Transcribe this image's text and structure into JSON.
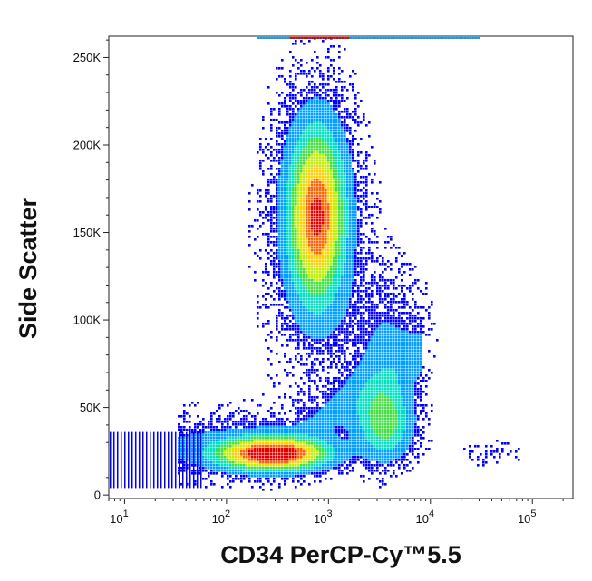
{
  "chart_data": {
    "type": "scatter",
    "subtype": "flow-cytometry density plot (pseudocolor)",
    "xlabel": "CD34 PerCP-Cy™5.5",
    "ylabel": "Side Scatter",
    "x_scale": "log",
    "xlim": [
      7,
      250000
    ],
    "ylim": [
      -2000,
      262144
    ],
    "x_ticks": [
      {
        "value": 10,
        "label": "10",
        "exp": "1"
      },
      {
        "value": 100,
        "label": "10",
        "exp": "2"
      },
      {
        "value": 1000,
        "label": "10",
        "exp": "3"
      },
      {
        "value": 10000,
        "label": "10",
        "exp": "4"
      },
      {
        "value": 100000,
        "label": "10",
        "exp": "5"
      }
    ],
    "y_ticks": [
      {
        "value": 0,
        "label": "0"
      },
      {
        "value": 50000,
        "label": "50K"
      },
      {
        "value": 100000,
        "label": "100K"
      },
      {
        "value": 150000,
        "label": "150K"
      },
      {
        "value": 200000,
        "label": "200K"
      },
      {
        "value": 250000,
        "label": "250K"
      }
    ],
    "grid": false,
    "colormap": [
      "#0000ff",
      "#00a0ff",
      "#00e0c0",
      "#40e040",
      "#c0f000",
      "#ffd000",
      "#ff6000",
      "#e00000"
    ],
    "populations": [
      {
        "name_hint": "low-SSC CD34- cluster",
        "x_center": 280,
        "y_center": 24000,
        "x_spread_decades": 0.35,
        "y_spread": 6000,
        "weight": 1.0
      },
      {
        "name_hint": "high-SSC granulocytes",
        "x_center": 750,
        "y_center": 160000,
        "x_spread_decades": 0.18,
        "y_spread": 32000,
        "weight": 0.85
      },
      {
        "name_hint": "CD34+ arc",
        "x_center": 3500,
        "y_center": 42000,
        "x_spread_decades": 0.18,
        "y_spread": 14000,
        "weight": 0.45
      },
      {
        "name_hint": "sparse CD34 bright",
        "x_center": 40000,
        "y_center": 24000,
        "x_spread_decades": 0.2,
        "y_spread": 5000,
        "weight": 0.05
      }
    ]
  }
}
